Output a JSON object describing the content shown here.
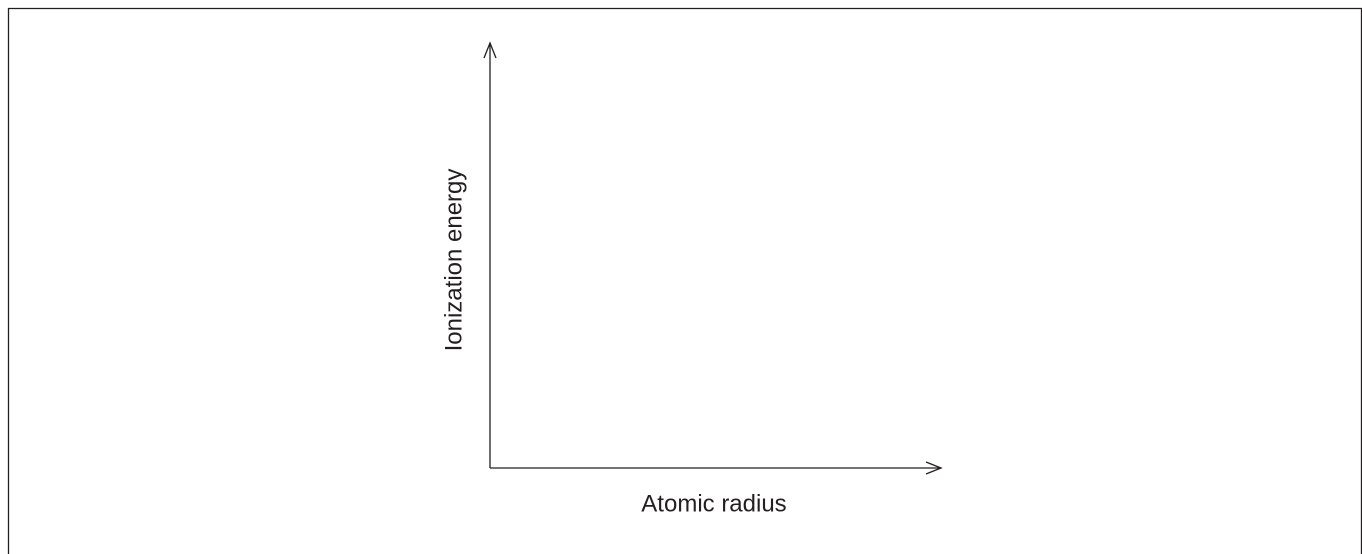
{
  "axes": {
    "x_label": "Atomic radius",
    "y_label": "Ionization energy"
  }
}
